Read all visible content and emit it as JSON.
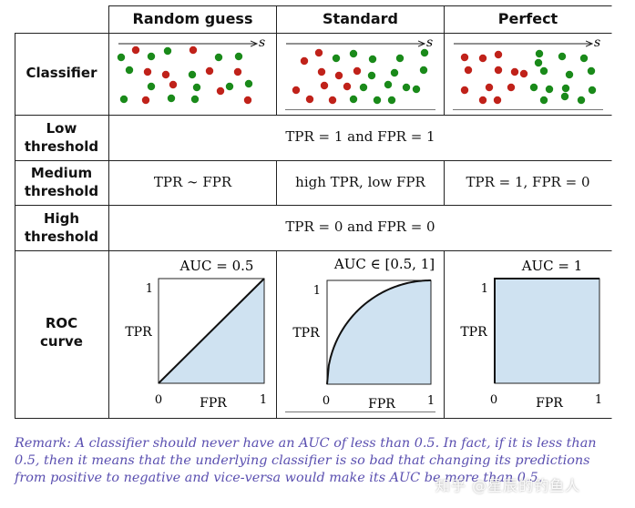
{
  "headers": {
    "random": "Random guess",
    "standard": "Standard",
    "perfect": "Perfect"
  },
  "rows": {
    "classifier": "Classifier",
    "low": [
      "Low",
      "threshold"
    ],
    "medium": [
      "Medium",
      "threshold"
    ],
    "high": [
      "High",
      "threshold"
    ],
    "roc": [
      "ROC",
      "curve"
    ]
  },
  "axis_symbol": "s",
  "cells": {
    "low": "TPR = 1 and FPR = 1",
    "medium_random": "TPR ∼ FPR",
    "medium_standard": "high TPR, low FPR",
    "medium_perfect": "TPR = 1, FPR = 0",
    "high": "TPR = 0 and FPR = 0"
  },
  "dot_colors": {
    "positive": "#1a8a1a",
    "negative": "#c0221a"
  },
  "fill_color": "#cfe2f1",
  "roc": {
    "auc_labels": [
      "AUC = 0.5",
      "AUC ∈ [0.5, 1]",
      "AUC = 1"
    ],
    "ylabel": "TPR",
    "xlabel": "FPR",
    "ticks": {
      "zero": "0",
      "one": "1"
    }
  },
  "chart_data": [
    {
      "type": "area",
      "title": "AUC = 0.5",
      "xlabel": "FPR",
      "ylabel": "TPR",
      "x": [
        0,
        1
      ],
      "y": [
        0,
        1
      ],
      "xlim": [
        0,
        1
      ],
      "ylim": [
        0,
        1
      ]
    },
    {
      "type": "area",
      "title": "AUC ∈ [0.5, 1]",
      "xlabel": "FPR",
      "ylabel": "TPR",
      "x": [
        0,
        0.1,
        0.2,
        0.3,
        0.4,
        0.5,
        0.6,
        0.7,
        0.8,
        0.9,
        1.0
      ],
      "y": [
        0,
        0.44,
        0.6,
        0.71,
        0.8,
        0.87,
        0.92,
        0.95,
        0.98,
        0.995,
        1.0
      ],
      "xlim": [
        0,
        1
      ],
      "ylim": [
        0,
        1
      ]
    },
    {
      "type": "area",
      "title": "AUC = 1",
      "xlabel": "FPR",
      "ylabel": "TPR",
      "x": [
        0,
        0,
        1
      ],
      "y": [
        0,
        1,
        1
      ],
      "xlim": [
        0,
        1
      ],
      "ylim": [
        0,
        1
      ]
    }
  ],
  "remark": "Remark: A classifier should never have an AUC of less than 0.5. In fact, if it is less than 0.5, then it means that the underlying classifier is so bad that changing its predictions from positive to negative and vice-versa would make its AUC be more than 0.5.",
  "watermark": "知乎 @星辰的钓鱼人"
}
